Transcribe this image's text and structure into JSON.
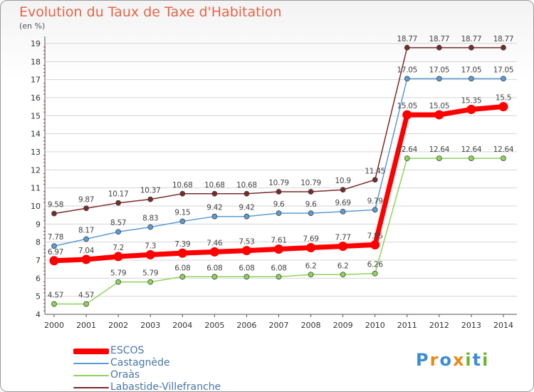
{
  "title": "Evolution du Taux de Taxe d'Habitation",
  "unit_label": "(en %)",
  "logo": {
    "text": "Proxiti",
    "letters": [
      "P",
      "r",
      "o",
      "x",
      "i",
      "t",
      "i"
    ],
    "colors": [
      "#3a8ed6",
      "#e88a1a",
      "#3a8ed6",
      "#e88a1a",
      "#6cb42c",
      "#3a8ed6",
      "#6cb42c"
    ]
  },
  "chart_data": {
    "type": "line",
    "title": "Evolution du Taux de Taxe d'Habitation",
    "xlabel": "",
    "ylabel": "(en %)",
    "ylim": [
      4,
      19
    ],
    "yticks": [
      "4",
      "5",
      "6",
      "7",
      "8",
      "9",
      "10",
      "11",
      "12",
      "13",
      "14",
      "15",
      "16",
      "17",
      "18",
      "19"
    ],
    "grid": true,
    "legend_position": "bottom-left",
    "x": [
      "2000",
      "2001",
      "2002",
      "2003",
      "2004",
      "2005",
      "2006",
      "2007",
      "2008",
      "2009",
      "2010",
      "2011",
      "2012",
      "2013",
      "2014"
    ],
    "series": [
      {
        "name": "ESCOS",
        "color": "#ff0000",
        "emphasis": true,
        "values": [
          6.97,
          7.04,
          7.2,
          7.3,
          7.39,
          7.46,
          7.53,
          7.61,
          7.69,
          7.77,
          7.85,
          15.05,
          15.05,
          15.35,
          15.5
        ],
        "labels": [
          "6.97",
          "7.04",
          "7.2",
          "7.3",
          "7.39",
          "7.46",
          "7.53",
          "7.61",
          "7.69",
          "7.77",
          "7.85",
          "15.05",
          "15.05",
          "15.35",
          "15.5"
        ]
      },
      {
        "name": "Castagnède",
        "color": "#5b9bd5",
        "values": [
          7.78,
          8.17,
          8.57,
          8.83,
          9.15,
          9.42,
          9.42,
          9.6,
          9.6,
          9.69,
          9.79,
          17.05,
          17.05,
          17.05,
          17.05
        ],
        "labels": [
          "7.78",
          "8.17",
          "8.57",
          "8.83",
          "9.15",
          "9.42",
          "9.42",
          "9.6",
          "9.6",
          "9.69",
          "9.79",
          "17.05",
          "17.05",
          "17.05",
          "17.05"
        ]
      },
      {
        "name": "Oraàs",
        "color": "#8ed35a",
        "values": [
          4.57,
          4.57,
          5.79,
          5.79,
          6.08,
          6.08,
          6.08,
          6.08,
          6.2,
          6.2,
          6.26,
          12.64,
          12.64,
          12.64,
          12.64
        ],
        "labels": [
          "4.57",
          "4.57",
          "5.79",
          "5.79",
          "6.08",
          "6.08",
          "6.08",
          "6.08",
          "6.2",
          "6.2",
          "6.26",
          "12.64",
          "12.64",
          "12.64",
          "12.64"
        ]
      },
      {
        "name": "Labastide-Villefranche",
        "color": "#7a2a2a",
        "values": [
          9.58,
          9.87,
          10.17,
          10.37,
          10.68,
          10.68,
          10.68,
          10.79,
          10.79,
          10.9,
          11.45,
          18.77,
          18.77,
          18.77,
          18.77
        ],
        "labels": [
          "9.58",
          "9.87",
          "10.17",
          "10.37",
          "10.68",
          "10.68",
          "10.68",
          "10.79",
          "10.79",
          "10.9",
          "11.45",
          "18.77",
          "18.77",
          "18.77",
          "18.77"
        ]
      }
    ]
  }
}
